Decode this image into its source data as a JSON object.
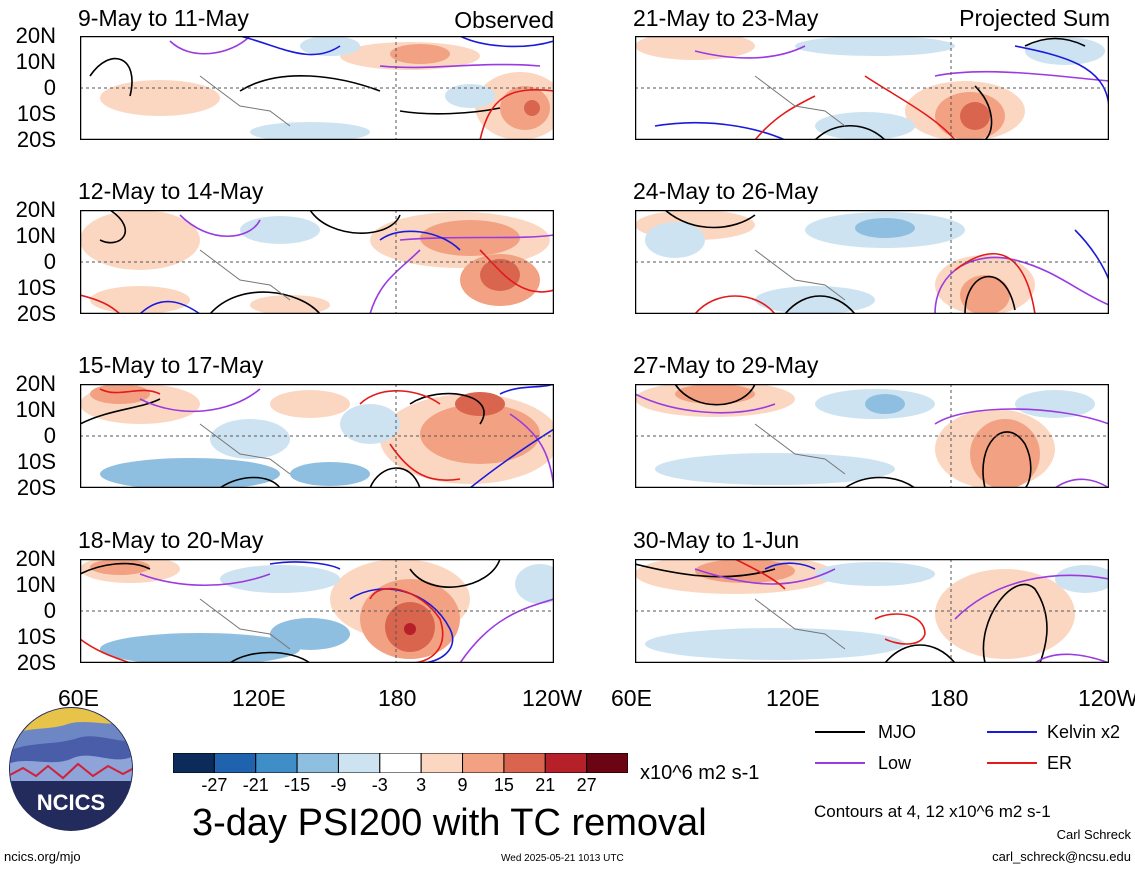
{
  "panels_left": [
    {
      "title": "9-May to 11-May",
      "corner": "Observed"
    },
    {
      "title": "12-May to 14-May",
      "corner": ""
    },
    {
      "title": "15-May to 17-May",
      "corner": ""
    },
    {
      "title": "18-May to 20-May",
      "corner": ""
    }
  ],
  "panels_right": [
    {
      "title": "21-May to 23-May",
      "corner": "Projected Sum"
    },
    {
      "title": "24-May to 26-May",
      "corner": ""
    },
    {
      "title": "27-May to 29-May",
      "corner": ""
    },
    {
      "title": "30-May to 1-Jun",
      "corner": ""
    }
  ],
  "lat_labels": [
    "20N",
    "10N",
    "0",
    "10S",
    "20S"
  ],
  "lon_labels": [
    "60E",
    "120E",
    "180",
    "120W"
  ],
  "legend": {
    "items": [
      {
        "label": "MJO",
        "color": "#000000"
      },
      {
        "label": "Kelvin x2",
        "color": "#1a1adc"
      },
      {
        "label": "Low",
        "color": "#9a3ae0"
      },
      {
        "label": "ER",
        "color": "#e41a1a"
      }
    ]
  },
  "colorbar": {
    "colors": [
      "#0b2b5a",
      "#1f62ad",
      "#3f8ec8",
      "#8ebfe0",
      "#cde3f1",
      "#ffffff",
      "#fbd7c2",
      "#f2a283",
      "#d9654e",
      "#b52029",
      "#6b0413"
    ],
    "ticks": [
      "-27",
      "-21",
      "-15",
      "-9",
      "-3",
      "3",
      "9",
      "15",
      "21",
      "27"
    ],
    "units": "x10^6 m2 s-1"
  },
  "main_title": "3-day PSI200 with TC removal",
  "contours_note": "Contours at 4, 12 x10^6 m2 s-1",
  "author": "Carl Schreck",
  "email": "carl_schreck@ncsu.edu",
  "url": "ncics.org/mjo",
  "timestamp": "Wed 2025-05-21 1013 UTC",
  "logo_text": "NCICS"
}
